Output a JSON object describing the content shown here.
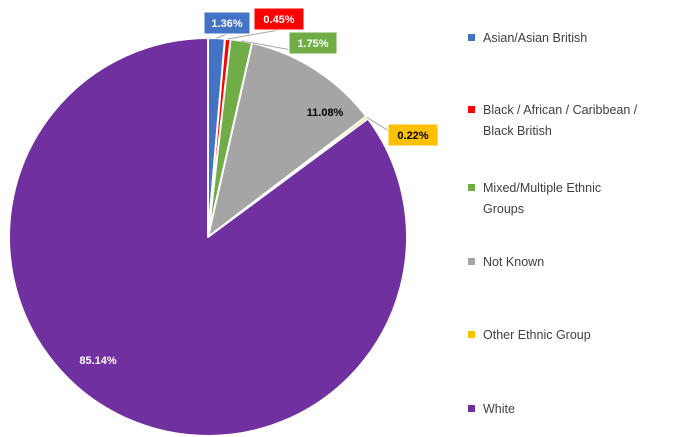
{
  "chart_data": {
    "type": "pie",
    "title": "",
    "legend_position": "right",
    "slices": [
      {
        "name": "Asian/Asian British",
        "label_lines": [
          "Asian/Asian British"
        ],
        "value": 1.36,
        "label": "1.36%",
        "color": "#4472C4",
        "label_style": "box"
      },
      {
        "name": "Black / African / Caribbean / Black British",
        "label_lines": [
          "Black / African / Caribbean /",
          "Black British"
        ],
        "value": 0.45,
        "label": "0.45%",
        "color": "#FF0000",
        "label_style": "box"
      },
      {
        "name": "Mixed/Multiple Ethnic Groups",
        "label_lines": [
          "Mixed/Multiple Ethnic",
          "Groups"
        ],
        "value": 1.75,
        "label": "1.75%",
        "color": "#70AD47",
        "label_style": "box"
      },
      {
        "name": "Not Known",
        "label_lines": [
          "Not Known"
        ],
        "value": 11.08,
        "label": "11.08%",
        "color": "#A5A5A5",
        "label_style": "inside"
      },
      {
        "name": "Other Ethnic Group",
        "label_lines": [
          "Other Ethnic Group"
        ],
        "value": 0.22,
        "label": "0.22%",
        "color": "#FFC000",
        "label_style": "box"
      },
      {
        "name": "White",
        "label_lines": [
          "White"
        ],
        "value": 85.14,
        "label": "85.14%",
        "color": "#7030A0",
        "label_style": "inside"
      }
    ]
  }
}
